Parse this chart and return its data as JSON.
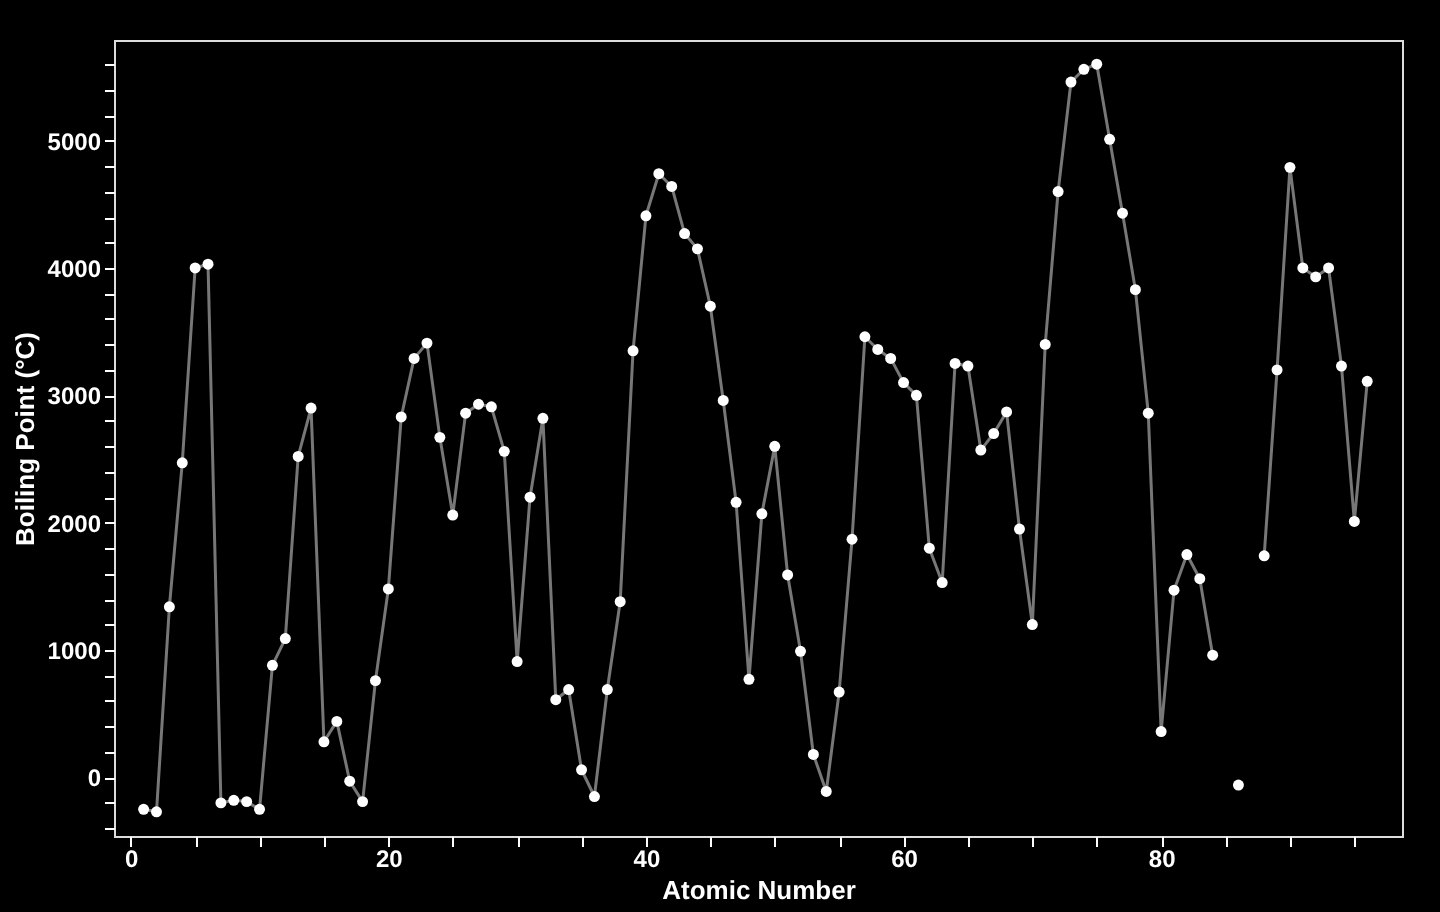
{
  "chart_data": {
    "type": "line",
    "xlabel": "Atomic Number",
    "ylabel": "Boiling Point (°C)",
    "x": [
      1,
      2,
      3,
      4,
      5,
      6,
      7,
      8,
      9,
      10,
      11,
      12,
      13,
      14,
      15,
      16,
      17,
      18,
      19,
      20,
      21,
      22,
      23,
      24,
      25,
      26,
      27,
      28,
      29,
      30,
      31,
      32,
      33,
      34,
      35,
      36,
      37,
      38,
      39,
      40,
      41,
      42,
      43,
      44,
      45,
      46,
      47,
      48,
      49,
      50,
      51,
      52,
      53,
      54,
      55,
      56,
      57,
      58,
      59,
      60,
      61,
      62,
      63,
      64,
      65,
      66,
      67,
      68,
      69,
      70,
      71,
      72,
      73,
      74,
      75,
      76,
      77,
      78,
      79,
      80,
      81,
      82,
      83,
      84,
      85,
      86,
      87,
      88,
      89,
      90,
      91,
      92,
      93,
      94,
      95,
      96
    ],
    "series": [
      {
        "color": "#777777",
        "line_style": "solid",
        "values": [
          -250,
          -270,
          1340,
          2470,
          4000,
          4030,
          -200,
          -180,
          -190,
          -250,
          880,
          1090,
          2520,
          2900,
          280,
          440,
          -30,
          -190,
          760,
          1480,
          2830,
          3290,
          3410,
          2670,
          2060,
          2860,
          2930,
          2910,
          2560,
          910,
          2200,
          2820,
          610,
          690,
          60,
          -150,
          690,
          1380,
          3350,
          4410,
          4740,
          4640,
          4270,
          4150,
          3700,
          2960,
          2160,
          770,
          2070,
          2600,
          1590,
          990,
          180,
          -110,
          670,
          1870,
          3460,
          3360,
          3290,
          3100,
          3000,
          1800,
          1530,
          3250,
          3230,
          2570,
          2700,
          2870,
          1950,
          1200,
          3400,
          4600,
          5460,
          5560,
          5600,
          5010,
          4430,
          3830,
          2860,
          360,
          1470,
          1750,
          1560,
          960,
          null,
          null,
          null,
          1740,
          3200,
          4790,
          4000,
          3930,
          4000,
          3230,
          2010,
          3110
        ]
      },
      {
        "type": "scatter",
        "color": "#ffffff",
        "marker": "circle",
        "values": [
          -250,
          -270,
          1340,
          2470,
          4000,
          4030,
          -200,
          -180,
          -190,
          -250,
          880,
          1090,
          2520,
          2900,
          280,
          440,
          -30,
          -190,
          760,
          1480,
          2830,
          3290,
          3410,
          2670,
          2060,
          2860,
          2930,
          2910,
          2560,
          910,
          2200,
          2820,
          610,
          690,
          60,
          -150,
          690,
          1380,
          3350,
          4410,
          4740,
          4640,
          4270,
          4150,
          3700,
          2960,
          2160,
          770,
          2070,
          2600,
          1590,
          990,
          180,
          -110,
          670,
          1870,
          3460,
          3360,
          3290,
          3100,
          3000,
          1800,
          1530,
          3250,
          3230,
          2570,
          2700,
          2870,
          1950,
          1200,
          3400,
          4600,
          5460,
          5560,
          5600,
          5010,
          4430,
          3830,
          2860,
          360,
          1470,
          1750,
          1560,
          960,
          null,
          -60,
          null,
          1740,
          3200,
          4790,
          4000,
          3930,
          4000,
          3230,
          2010,
          3110
        ]
      }
    ],
    "xlim": [
      -1.3,
      98.7
    ],
    "ylim": [
      -460,
      5790
    ],
    "xticks": [
      0,
      {
        "value": 5,
        "label": null
      },
      {
        "value": 10,
        "label": null
      },
      {
        "value": 15,
        "label": null
      },
      20,
      {
        "value": 25,
        "label": null
      },
      {
        "value": 30,
        "label": null
      },
      {
        "value": 35,
        "label": null
      },
      40,
      {
        "value": 45,
        "label": null
      },
      {
        "value": 50,
        "label": null
      },
      {
        "value": 55,
        "label": null
      },
      60,
      {
        "value": 65,
        "label": null
      },
      {
        "value": 70,
        "label": null
      },
      {
        "value": 75,
        "label": null
      },
      80,
      {
        "value": 85,
        "label": null
      },
      {
        "value": 90,
        "label": null
      },
      {
        "value": 95,
        "label": null
      }
    ],
    "yticks": [
      {
        "value": -400,
        "label": null
      },
      {
        "value": -200,
        "label": null
      },
      0,
      {
        "value": 200,
        "label": null
      },
      {
        "value": 400,
        "label": null
      },
      {
        "value": 600,
        "label": null
      },
      {
        "value": 800,
        "label": null
      },
      1000,
      {
        "value": 1200,
        "label": null
      },
      {
        "value": 1400,
        "label": null
      },
      {
        "value": 1600,
        "label": null
      },
      {
        "value": 1800,
        "label": null
      },
      2000,
      {
        "value": 2200,
        "label": null
      },
      {
        "value": 2400,
        "label": null
      },
      {
        "value": 2600,
        "label": null
      },
      {
        "value": 2800,
        "label": null
      },
      3000,
      {
        "value": 3200,
        "label": null
      },
      {
        "value": 3400,
        "label": null
      },
      {
        "value": 3600,
        "label": null
      },
      {
        "value": 3800,
        "label": null
      },
      4000,
      {
        "value": 4200,
        "label": null
      },
      {
        "value": 4400,
        "label": null
      },
      {
        "value": 4600,
        "label": null
      },
      {
        "value": 4800,
        "label": null
      },
      5000,
      {
        "value": 5200,
        "label": null
      },
      {
        "value": 5400,
        "label": null
      },
      {
        "value": 5600,
        "label": null
      }
    ],
    "grid": false
  }
}
